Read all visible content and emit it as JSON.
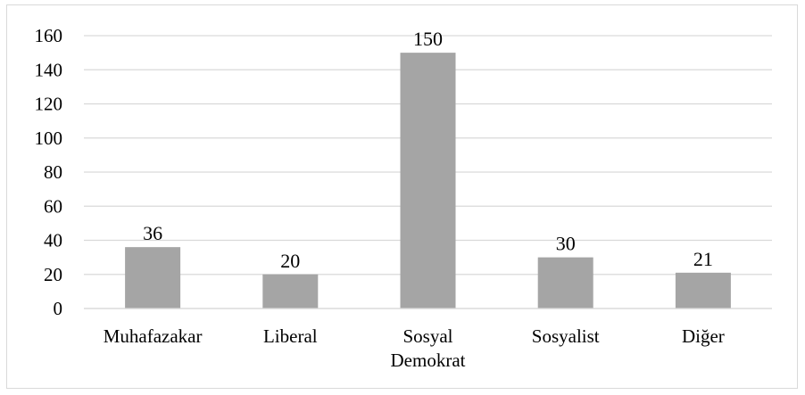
{
  "chart_data": {
    "type": "bar",
    "categories": [
      [
        "Muhafazakar"
      ],
      [
        "Liberal"
      ],
      [
        "Sosyal",
        "Demokrat"
      ],
      [
        "Sosyalist"
      ],
      [
        "Diğer"
      ]
    ],
    "values": [
      36,
      20,
      150,
      30,
      21
    ],
    "data_labels": [
      "36",
      "20",
      "150",
      "30",
      "21"
    ],
    "ylim": [
      0,
      160
    ],
    "y_ticks": [
      "0",
      "20",
      "40",
      "60",
      "80",
      "100",
      "120",
      "140",
      "160"
    ],
    "grid": true,
    "bar_color": "#a5a5a5",
    "grid_color": "#d9d9d9"
  }
}
